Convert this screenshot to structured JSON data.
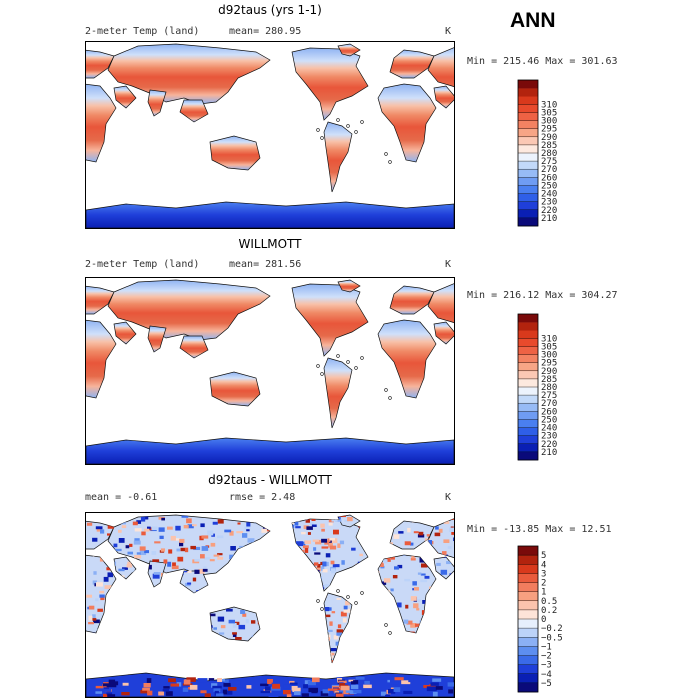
{
  "header": {
    "season": "ANN"
  },
  "colors": {
    "abs_palette": [
      "#0a0a7a",
      "#0a1fb4",
      "#1f3fd9",
      "#2f5fe8",
      "#4a7ff0",
      "#6f9cf3",
      "#97bbf6",
      "#c2d9f9",
      "#ecf3fd",
      "#fde9df",
      "#fbc8b4",
      "#f7a586",
      "#f38262",
      "#ee6244",
      "#e84a2c",
      "#d9391c",
      "#b2230e",
      "#7a0a0a"
    ],
    "diff_palette": [
      "#0a0a7a",
      "#0a1fb4",
      "#1f3fd9",
      "#3a6ae8",
      "#5d8ef0",
      "#8bb0f5",
      "#bcd3f9",
      "#e7effc",
      "#fde4d8",
      "#fbc3ad",
      "#f7a080",
      "#f27d5e",
      "#ea5b3c",
      "#d9391c",
      "#b2230e",
      "#7a0a0a"
    ],
    "land_warm": "#e8563a",
    "land_mid": "#f8c1a8",
    "land_cold": "#8fb3f2",
    "ice": "#1f3fd9",
    "coast": "#111111"
  },
  "panels": [
    {
      "title": "d92taus (yrs 1-1)",
      "left_label": "2-meter Temp (land)",
      "stat_label": "mean= 280.95",
      "unit": "K",
      "minmax": "Min = 215.46 Max = 301.63",
      "map_icon": "world-map-temperature"
    },
    {
      "title": "WILLMOTT",
      "left_label": "2-meter Temp (land)",
      "stat_label": "mean= 281.56",
      "unit": "K",
      "minmax": "Min = 216.12 Max = 304.27",
      "map_icon": "world-map-temperature"
    },
    {
      "title": "d92taus - WILLMOTT",
      "left_label": "mean =   -0.61",
      "stat_label": "rmse =    2.48",
      "unit": "K",
      "minmax": "Min = -13.85 Max =   12.51",
      "map_icon": "world-map-difference"
    }
  ],
  "chart_data": [
    {
      "type": "heatmap",
      "title": "d92taus (yrs 1-1)",
      "subtitle": "2-meter Temp (land)",
      "units": "K",
      "mean": 280.95,
      "min": 215.46,
      "max": 301.63,
      "colorbar_levels": [
        210,
        220,
        230,
        240,
        250,
        260,
        270,
        275,
        280,
        285,
        290,
        295,
        300,
        305,
        310
      ],
      "colorbar_labels": [
        "210",
        "220",
        "230",
        "240",
        "250",
        "260",
        "270",
        "275",
        "280",
        "285",
        "290",
        "295",
        "300",
        "305",
        "310"
      ],
      "legend": "right"
    },
    {
      "type": "heatmap",
      "title": "WILLMOTT",
      "subtitle": "2-meter Temp (land)",
      "units": "K",
      "mean": 281.56,
      "min": 216.12,
      "max": 304.27,
      "colorbar_levels": [
        210,
        220,
        230,
        240,
        250,
        260,
        270,
        275,
        280,
        285,
        290,
        295,
        300,
        305,
        310
      ],
      "colorbar_labels": [
        "210",
        "220",
        "230",
        "240",
        "250",
        "260",
        "270",
        "275",
        "280",
        "285",
        "290",
        "295",
        "300",
        "305",
        "310"
      ],
      "legend": "right"
    },
    {
      "type": "heatmap",
      "title": "d92taus - WILLMOTT",
      "units": "K",
      "mean": -0.61,
      "rmse": 2.48,
      "min": -13.85,
      "max": 12.51,
      "colorbar_levels": [
        -5,
        -4,
        -3,
        -2,
        -1,
        -0.5,
        -0.2,
        0,
        0.2,
        0.5,
        1,
        2,
        3,
        4,
        5
      ],
      "colorbar_labels": [
        "−5",
        "−4",
        "−3",
        "−2",
        "−1",
        "−0.5",
        "−0.2",
        "0",
        "0.2",
        "0.5",
        "1",
        "2",
        "3",
        "4",
        "5"
      ],
      "legend": "right"
    }
  ]
}
